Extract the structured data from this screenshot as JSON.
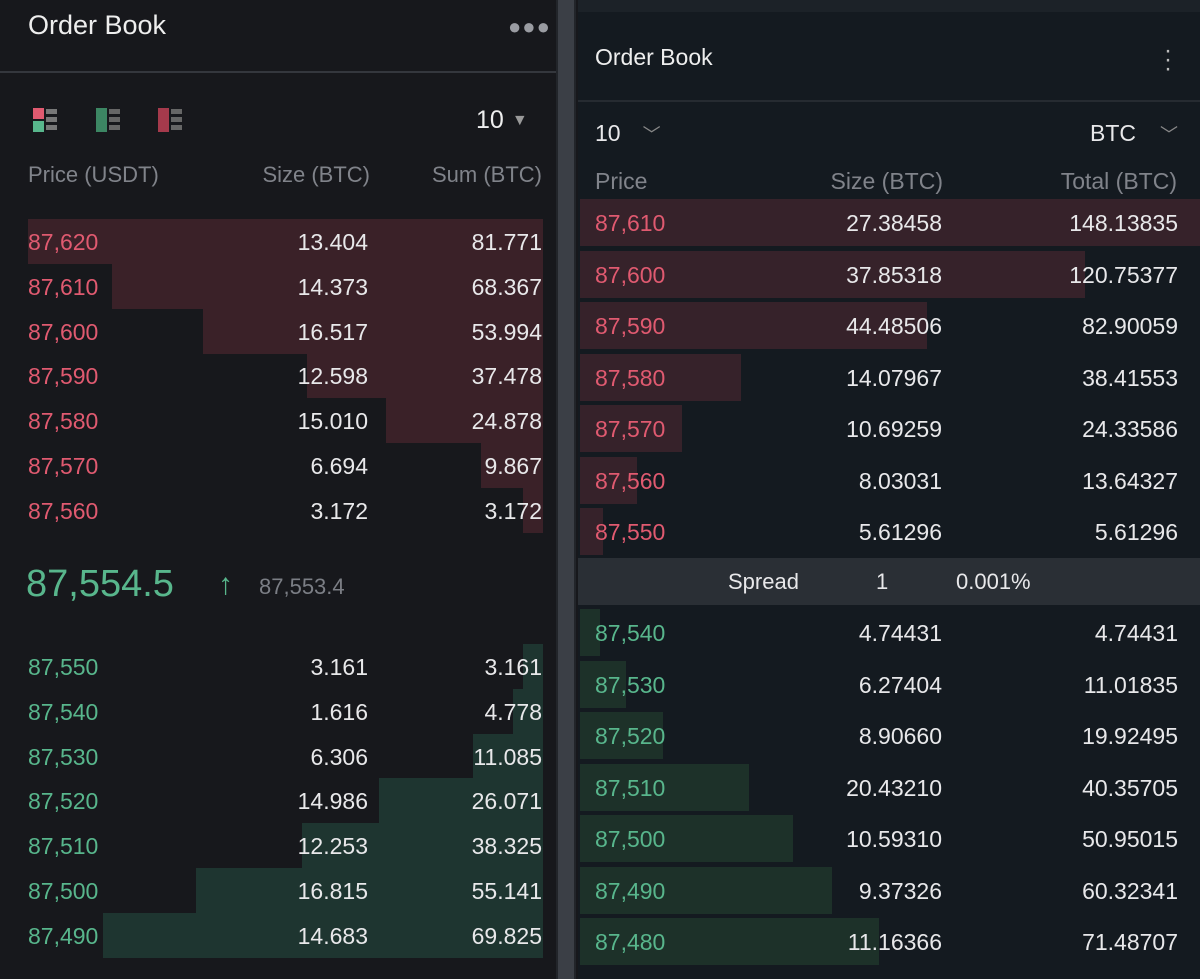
{
  "left": {
    "title": "Order Book",
    "menu_icon": "more-horizontal-icon",
    "view_icons": [
      "view-both-icon",
      "view-bids-icon",
      "view-asks-icon"
    ],
    "depth_select": "10",
    "headers": [
      "Price (USDT)",
      "Size (BTC)",
      "Sum (BTC)"
    ],
    "asks": [
      {
        "price": "87,620",
        "size": "13.404",
        "sum": "81.771"
      },
      {
        "price": "87,610",
        "size": "14.373",
        "sum": "68.367"
      },
      {
        "price": "87,600",
        "size": "16.517",
        "sum": "53.994"
      },
      {
        "price": "87,590",
        "size": "12.598",
        "sum": "37.478"
      },
      {
        "price": "87,580",
        "size": "15.010",
        "sum": "24.878"
      },
      {
        "price": "87,570",
        "size": "6.694",
        "sum": "9.867"
      },
      {
        "price": "87,560",
        "size": "3.172",
        "sum": "3.172"
      }
    ],
    "last_price": "87,554.5",
    "last_arrow": "↑",
    "mark_price": "87,553.4",
    "bids": [
      {
        "price": "87,550",
        "size": "3.161",
        "sum": "3.161"
      },
      {
        "price": "87,540",
        "size": "1.616",
        "sum": "4.778"
      },
      {
        "price": "87,530",
        "size": "6.306",
        "sum": "11.085"
      },
      {
        "price": "87,520",
        "size": "14.986",
        "sum": "26.071"
      },
      {
        "price": "87,510",
        "size": "12.253",
        "sum": "38.325"
      },
      {
        "price": "87,500",
        "size": "16.815",
        "sum": "55.141"
      },
      {
        "price": "87,490",
        "size": "14.683",
        "sum": "69.825"
      }
    ]
  },
  "right": {
    "title": "Order Book",
    "menu_icon": "more-vertical-icon",
    "depth_select": "10",
    "currency_select": "BTC",
    "headers": [
      "Price",
      "Size (BTC)",
      "Total (BTC)"
    ],
    "asks": [
      {
        "price": "87,610",
        "size": "27.38458",
        "total": "148.13835"
      },
      {
        "price": "87,600",
        "size": "37.85318",
        "total": "120.75377"
      },
      {
        "price": "87,590",
        "size": "44.48506",
        "total": "82.90059"
      },
      {
        "price": "87,580",
        "size": "14.07967",
        "total": "38.41553"
      },
      {
        "price": "87,570",
        "size": "10.69259",
        "total": "24.33586"
      },
      {
        "price": "87,560",
        "size": "8.03031",
        "total": "13.64327"
      },
      {
        "price": "87,550",
        "size": "5.61296",
        "total": "5.61296"
      }
    ],
    "spread": {
      "label": "Spread",
      "value": "1",
      "percent": "0.001%"
    },
    "bids": [
      {
        "price": "87,540",
        "size": "4.74431",
        "total": "4.74431"
      },
      {
        "price": "87,530",
        "size": "6.27404",
        "total": "11.01835"
      },
      {
        "price": "87,520",
        "size": "8.90660",
        "total": "19.92495"
      },
      {
        "price": "87,510",
        "size": "20.43210",
        "total": "40.35705"
      },
      {
        "price": "87,500",
        "size": "10.59310",
        "total": "50.95015"
      },
      {
        "price": "87,490",
        "size": "9.37326",
        "total": "60.32341"
      },
      {
        "price": "87,480",
        "size": "11.16366",
        "total": "71.48707"
      }
    ]
  },
  "colors": {
    "ask": "#e05a70",
    "bid": "#58b68c",
    "ask_bar_left": "#3a2128",
    "bid_bar_left": "#1e3530",
    "ask_bar_right": "#36222a",
    "bid_bar_right": "#1d3129"
  }
}
